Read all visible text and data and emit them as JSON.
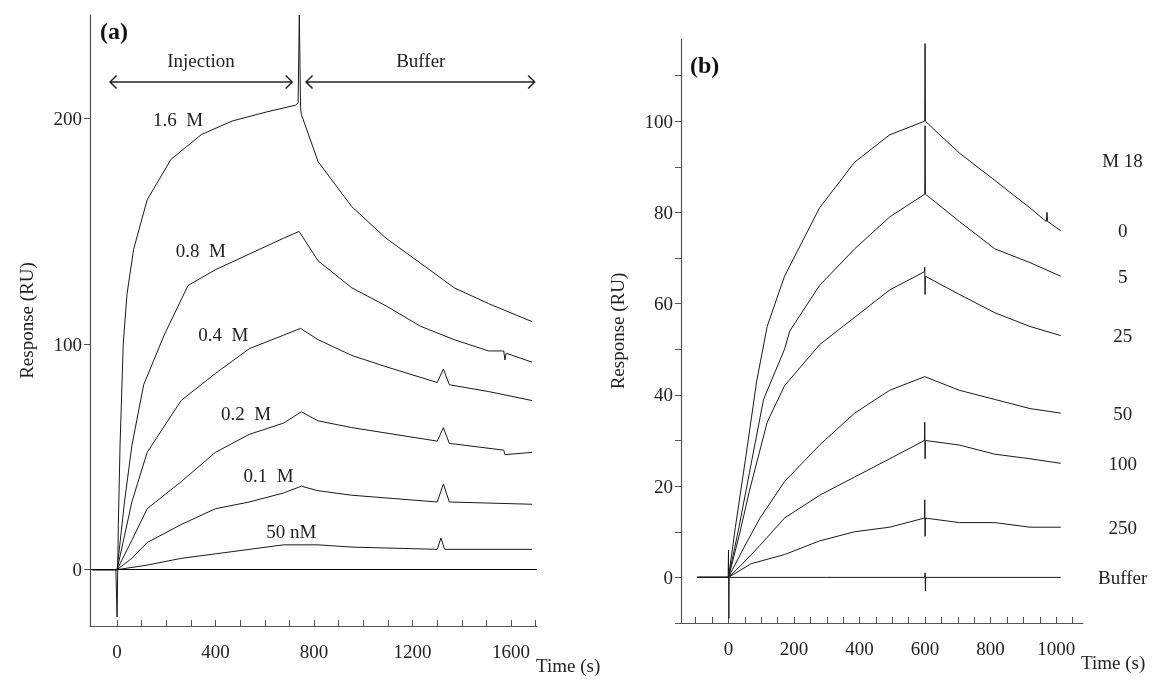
{
  "chart_data": [
    {
      "type": "line",
      "title": "(a)",
      "xlabel": "Time (s)",
      "ylabel": "Response (RU)",
      "xlim": [
        -110,
        1705
      ],
      "ylim": [
        -25,
        246
      ],
      "xticks": [
        0,
        {
          "value": 100,
          "label": null
        },
        {
          "value": 200,
          "label": null
        },
        {
          "value": 300,
          "label": null
        },
        400,
        {
          "value": 500,
          "label": null
        },
        {
          "value": 600,
          "label": null
        },
        {
          "value": 700,
          "label": null
        },
        800,
        {
          "value": 900,
          "label": null
        },
        {
          "value": 1000,
          "label": null
        },
        {
          "value": 1100,
          "label": null
        },
        1200,
        {
          "value": 1300,
          "label": null
        },
        {
          "value": 1400,
          "label": null
        },
        {
          "value": 1500,
          "label": null
        },
        1600,
        {
          "value": 1700,
          "label": null
        }
      ],
      "yticks": [
        0,
        100,
        200
      ],
      "ref_lines": [
        {
          "axis": "y",
          "value": 0,
          "color": "#000000",
          "line_style": "solid"
        }
      ],
      "annotations": [
        "Injection",
        "Buffer"
      ],
      "series": [
        {
          "name": "1.6  M",
          "color": "#1a1a1a",
          "x": [
            -100,
            -5,
            0,
            5,
            12,
            25,
            40,
            67,
            122,
            219,
            343,
            468,
            607,
            725,
            735,
            740,
            745,
            748,
            816,
            953,
            1092,
            1231,
            1369,
            1508,
            1685
          ],
          "values": [
            0,
            0,
            -21,
            20,
            55,
            100,
            122,
            142,
            164,
            182,
            193,
            199,
            203,
            206,
            207,
            246,
            205,
            202,
            181,
            161,
            147,
            136,
            125,
            118,
            110
          ]
        },
        {
          "name": "0.8  M",
          "color": "#1a1a1a",
          "x": [
            -100,
            0,
            30,
            60,
            108,
            191,
            288,
            399,
            537,
            676,
            739,
            816,
            953,
            1092,
            1231,
            1369,
            1508,
            1570,
            1575,
            1580,
            1685
          ],
          "values": [
            0,
            0,
            30,
            55,
            82,
            104,
            126,
            133,
            140,
            147,
            150,
            137,
            125,
            117,
            108,
            102,
            97,
            97,
            93,
            96,
            92
          ]
        },
        {
          "name": "0.4  M",
          "color": "#1a1a1a",
          "x": [
            -100,
            0,
            30,
            60,
            122,
            260,
            399,
            537,
            676,
            745,
            816,
            953,
            1092,
            1300,
            1325,
            1349,
            1508,
            1685
          ],
          "values": [
            0,
            0,
            15,
            30,
            52,
            75,
            87,
            98,
            104,
            107,
            102,
            95,
            90,
            83,
            89,
            82,
            79,
            75
          ]
        },
        {
          "name": "0.2  M",
          "color": "#1a1a1a",
          "x": [
            -100,
            0,
            60,
            122,
            260,
            399,
            537,
            676,
            748,
            816,
            953,
            1300,
            1325,
            1349,
            1570,
            1575,
            1685
          ],
          "values": [
            0,
            0,
            13,
            27,
            39,
            52,
            60,
            65,
            70,
            66,
            63,
            57,
            63,
            56,
            53,
            51,
            52
          ]
        },
        {
          "name": "0.1  M",
          "color": "#1a1a1a",
          "x": [
            -100,
            0,
            60,
            122,
            260,
            399,
            537,
            676,
            748,
            816,
            953,
            1300,
            1325,
            1349,
            1685
          ],
          "values": [
            0,
            0,
            5,
            12,
            20,
            27,
            30,
            34,
            37,
            35,
            33,
            30,
            38,
            30,
            29
          ]
        },
        {
          "name": "50 nM",
          "color": "#1a1a1a",
          "x": [
            -100,
            0,
            122,
            260,
            399,
            676,
            816,
            953,
            1300,
            1315,
            1330,
            1685
          ],
          "values": [
            0,
            0,
            2,
            5,
            7,
            11,
            11,
            10,
            9,
            14,
            9,
            9
          ]
        }
      ]
    },
    {
      "type": "line",
      "title": "(b)",
      "xlabel": "Time (s)",
      "ylabel": "Response (RU)",
      "legend_title": "M 18",
      "xlim": [
        -145,
        1082
      ],
      "ylim": [
        -10,
        118
      ],
      "xticks": [
        {
          "value": -100,
          "label": null
        },
        {
          "value": -50,
          "label": null
        },
        0,
        {
          "value": 50,
          "label": null
        },
        {
          "value": 100,
          "label": null
        },
        {
          "value": 150,
          "label": null
        },
        200,
        {
          "value": 250,
          "label": null
        },
        {
          "value": 300,
          "label": null
        },
        {
          "value": 350,
          "label": null
        },
        400,
        {
          "value": 450,
          "label": null
        },
        {
          "value": 500,
          "label": null
        },
        {
          "value": 550,
          "label": null
        },
        600,
        {
          "value": 650,
          "label": null
        },
        {
          "value": 700,
          "label": null
        },
        {
          "value": 750,
          "label": null
        },
        800,
        {
          "value": 850,
          "label": null
        },
        {
          "value": 900,
          "label": null
        },
        {
          "value": 950,
          "label": null
        },
        1000,
        {
          "value": 1050,
          "label": null
        }
      ],
      "yticks": [
        {
          "value": -10,
          "label": null
        },
        0,
        {
          "value": 10,
          "label": null
        },
        20,
        {
          "value": 30,
          "label": null
        },
        40,
        {
          "value": 50,
          "label": null
        },
        60,
        {
          "value": 70,
          "label": null
        },
        80,
        {
          "value": 90,
          "label": null
        },
        100,
        {
          "value": 110,
          "label": null
        }
      ],
      "series": [
        {
          "name": "0",
          "color": "#1a1a1a",
          "x": [
            -95,
            0,
            21,
            54,
            86,
            118,
            171,
            278,
            385,
            492,
            599,
            600,
            601,
            630,
            705,
            813,
            920,
            970,
            972,
            974,
            1014
          ],
          "values": [
            0,
            0,
            11,
            27,
            43,
            55,
            66,
            81,
            91,
            97,
            100,
            117,
            100,
            98,
            93,
            87,
            81,
            78,
            80,
            78,
            76
          ]
        },
        {
          "name": "5",
          "color": "#1a1a1a",
          "x": [
            -95,
            0,
            32,
            64,
            107,
            171,
            187,
            278,
            385,
            492,
            599,
            600,
            601,
            705,
            813,
            920,
            1014
          ],
          "values": [
            0,
            0,
            11,
            23,
            39,
            50,
            54,
            64,
            72,
            79,
            84,
            99,
            84,
            78,
            72,
            69,
            66
          ]
        },
        {
          "name": "25",
          "color": "#1a1a1a",
          "x": [
            -95,
            0,
            32,
            64,
            118,
            171,
            278,
            385,
            492,
            598,
            599,
            600,
            601,
            705,
            813,
            920,
            1014
          ],
          "values": [
            0,
            0,
            9,
            19,
            34,
            42,
            51,
            57,
            63,
            67,
            68,
            62,
            66,
            62,
            58,
            55,
            53
          ]
        },
        {
          "name": "50",
          "color": "#1a1a1a",
          "x": [
            -95,
            0,
            43,
            96,
            171,
            278,
            385,
            492,
            599,
            705,
            813,
            920,
            1014
          ],
          "values": [
            0,
            0,
            6,
            13,
            21,
            29,
            36,
            41,
            44,
            41,
            39,
            37,
            36
          ]
        },
        {
          "name": "100",
          "color": "#1a1a1a",
          "x": [
            -95,
            0,
            43,
            96,
            171,
            278,
            385,
            492,
            598,
            599,
            600,
            601,
            705,
            813,
            920,
            1014
          ],
          "values": [
            0,
            0,
            3,
            7,
            13,
            18,
            22,
            26,
            30,
            34,
            26,
            30,
            29,
            27,
            26,
            25
          ]
        },
        {
          "name": "250",
          "color": "#1a1a1a",
          "x": [
            -95,
            0,
            69,
            171,
            278,
            385,
            492,
            598,
            599,
            600,
            601,
            705,
            813,
            920,
            1014
          ],
          "values": [
            0,
            0,
            3,
            5,
            8,
            10,
            11,
            13,
            17,
            9,
            13,
            12,
            12,
            11,
            11
          ]
        },
        {
          "name": "Buffer",
          "color": "#1a1a1a",
          "x": [
            -95,
            -1,
            0,
            1,
            2,
            300,
            599,
            600,
            601,
            602,
            1014
          ],
          "values": [
            0,
            0,
            6,
            -9,
            0,
            0,
            0,
            1,
            -3,
            0,
            0
          ]
        }
      ]
    }
  ]
}
